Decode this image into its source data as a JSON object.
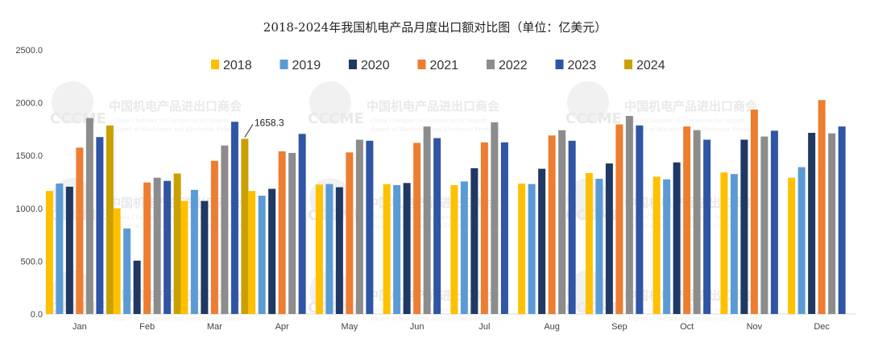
{
  "chart_data": {
    "type": "bar",
    "title": "2018-2024年我国机电产品月度出口额对比图（单位：亿美元）",
    "xlabel": "",
    "ylabel": "",
    "ylim": [
      0,
      2500
    ],
    "yticks": [
      "0.0",
      "500.0",
      "1000.0",
      "1500.0",
      "2000.0",
      "2500.0"
    ],
    "grid": false,
    "legend_position": "top",
    "categories": [
      "Jan",
      "Feb",
      "Mar",
      "Apr",
      "May",
      "Jun",
      "Jul",
      "Aug",
      "Sep",
      "Oct",
      "Nov",
      "Dec"
    ],
    "series": [
      {
        "name": "2018",
        "color": "#ffc000",
        "values": [
          1165,
          1000,
          1070,
          1165,
          1225,
          1230,
          1220,
          1235,
          1335,
          1300,
          1340,
          1290
        ]
      },
      {
        "name": "2019",
        "color": "#5b9bd5",
        "values": [
          1235,
          810,
          1175,
          1120,
          1230,
          1220,
          1255,
          1230,
          1280,
          1275,
          1325,
          1390
        ]
      },
      {
        "name": "2020",
        "color": "#1f3864",
        "values": [
          1205,
          505,
          1070,
          1185,
          1200,
          1240,
          1380,
          1375,
          1425,
          1435,
          1650,
          1715
        ]
      },
      {
        "name": "2021",
        "color": "#ed7d31",
        "values": [
          1575,
          1245,
          1450,
          1540,
          1530,
          1620,
          1625,
          1690,
          1795,
          1775,
          1935,
          2025
        ]
      },
      {
        "name": "2022",
        "color": "#8c8c8c",
        "values": [
          1855,
          1290,
          1595,
          1525,
          1650,
          1775,
          1815,
          1740,
          1875,
          1740,
          1680,
          1710
        ]
      },
      {
        "name": "2023",
        "color": "#2f55a4",
        "values": [
          1675,
          1260,
          1820,
          1705,
          1640,
          1665,
          1625,
          1640,
          1785,
          1650,
          1735,
          1775
        ]
      },
      {
        "name": "2024",
        "color": "#c9a000",
        "values": [
          1785,
          1330,
          1658.3,
          null,
          null,
          null,
          null,
          null,
          null,
          null,
          null,
          null
        ]
      }
    ],
    "annotations": [
      {
        "text": "1658.3",
        "series": "2024",
        "category": "Mar"
      }
    ]
  },
  "watermark": {
    "logo": "CCCME",
    "cn": "中国机电产品进出口商会",
    "en1": "China Chamber of Commerce for Import",
    "en2": "Expert of Machinery and Electronic Products"
  }
}
